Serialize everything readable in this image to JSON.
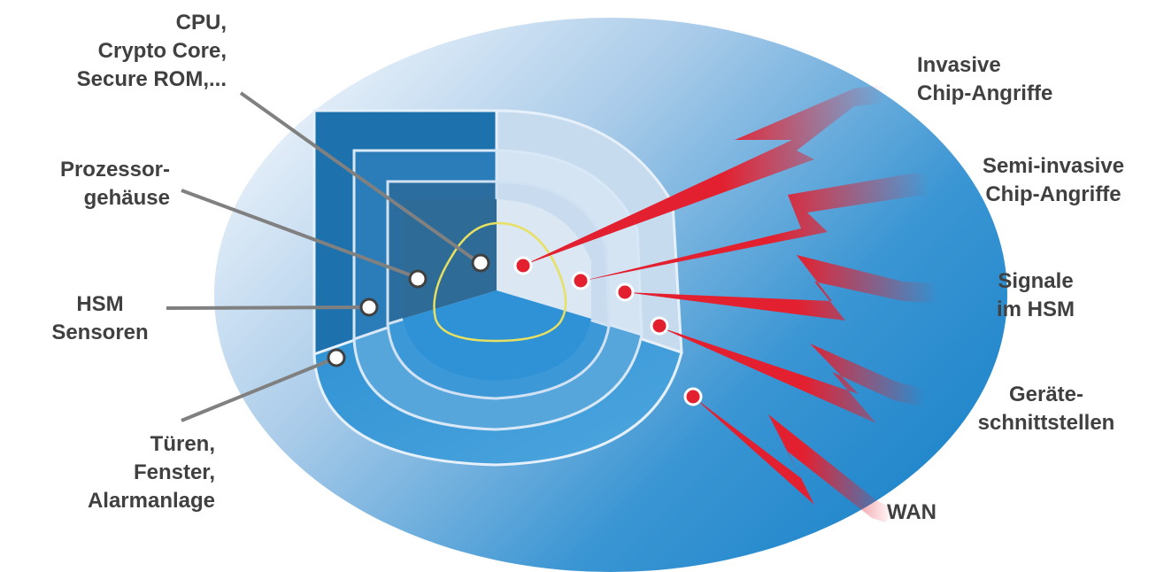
{
  "diagram": {
    "left_labels": [
      {
        "id": "cpu",
        "lines": [
          "CPU,",
          "Crypto Core,",
          "Secure ROM,..."
        ]
      },
      {
        "id": "processor_housing",
        "lines": [
          "Prozessor-",
          "gehäuse"
        ]
      },
      {
        "id": "hsm_sensors",
        "lines": [
          "HSM",
          "Sensoren"
        ]
      },
      {
        "id": "doors",
        "lines": [
          "Türen,",
          "Fenster,",
          "Alarmanlage"
        ]
      }
    ],
    "right_labels": [
      {
        "id": "invasive",
        "lines": [
          "Invasive",
          "Chip-Angriffe"
        ]
      },
      {
        "id": "semi_invasive",
        "lines": [
          "Semi-invasive",
          "Chip-Angriffe"
        ]
      },
      {
        "id": "signals",
        "lines": [
          "Signale",
          "im HSM"
        ]
      },
      {
        "id": "device_interfaces",
        "lines": [
          "Geräte-",
          "schnittstellen"
        ]
      },
      {
        "id": "wan",
        "lines": [
          "WAN"
        ]
      }
    ],
    "colors": {
      "text": "#404040",
      "attack_red": "#e3202f",
      "leader_gray": "#808080",
      "core_outline": "#e8e060",
      "blue_dark": "#1f6fa8",
      "blue_mid": "#2e8fd0",
      "blue_light": "#b9d4ec"
    }
  }
}
